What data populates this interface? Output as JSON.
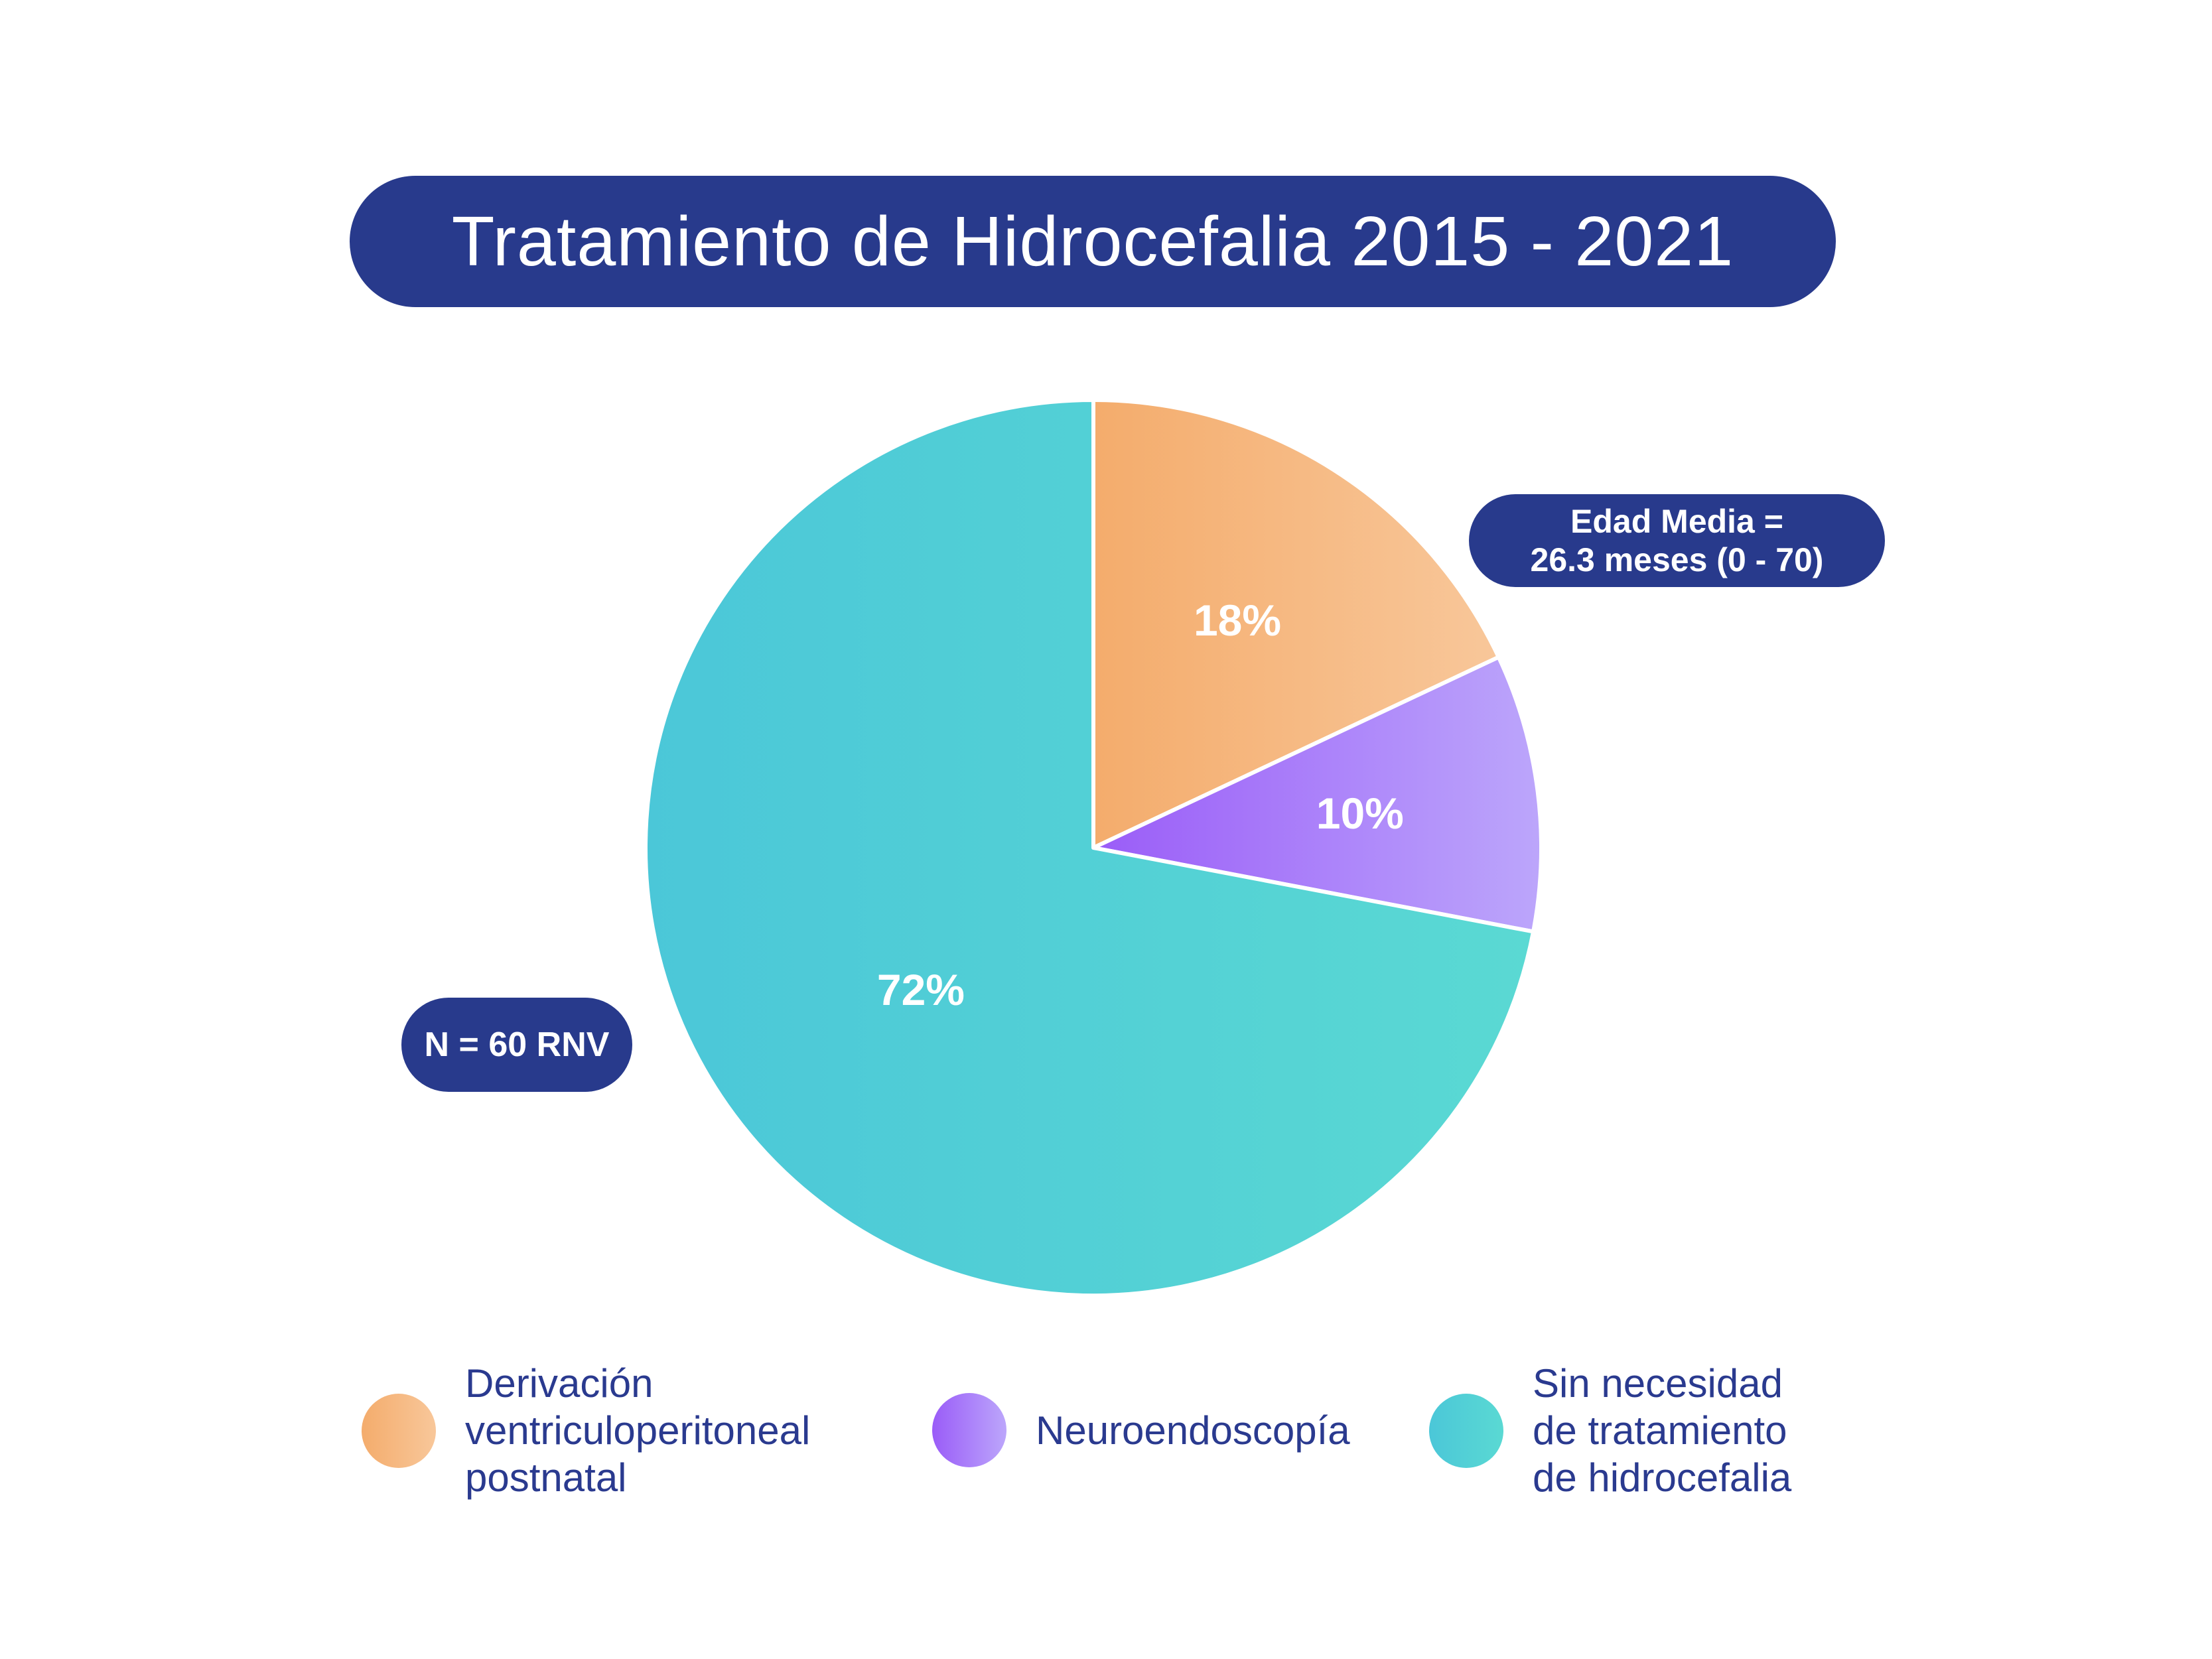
{
  "title": "Tratamiento de Hidrocefalia 2015 - 2021",
  "badges": {
    "age_line1": "Edad Media =",
    "age_line2": "26.3 meses (0 - 70)",
    "n": "N = 60 RNV"
  },
  "colors": {
    "navy": "#283a8c",
    "orange_start": "#f4ac6c",
    "orange_end": "#f8c79a",
    "purple_start": "#9a5cf8",
    "purple_end": "#bca6fb",
    "teal_start": "#4bc7d8",
    "teal_end": "#5ad9d3",
    "legend_text": "#2a3a8f"
  },
  "chart_data": {
    "type": "pie",
    "title": "Tratamiento de Hidrocefalia 2015 - 2021",
    "slices": [
      {
        "name": "Derivación ventriculoperitoneal postnatal",
        "value": 18,
        "label": "18%",
        "color": "orange"
      },
      {
        "name": "Neuroendoscopía",
        "value": 10,
        "label": "10%",
        "color": "purple"
      },
      {
        "name": "Sin necesidad de tratamiento de hidrocefalia",
        "value": 72,
        "label": "72%",
        "color": "teal"
      }
    ],
    "annotations": [
      "Edad Media = 26.3 meses (0 - 70)",
      "N = 60 RNV"
    ],
    "legend_position": "bottom"
  },
  "legend": {
    "items": [
      {
        "label": "Derivación\nventriculoperitoneal\npostnatal"
      },
      {
        "label": "Neuroendoscopía"
      },
      {
        "label": "Sin necesidad\nde tratamiento\nde hidrocefalia"
      }
    ]
  }
}
